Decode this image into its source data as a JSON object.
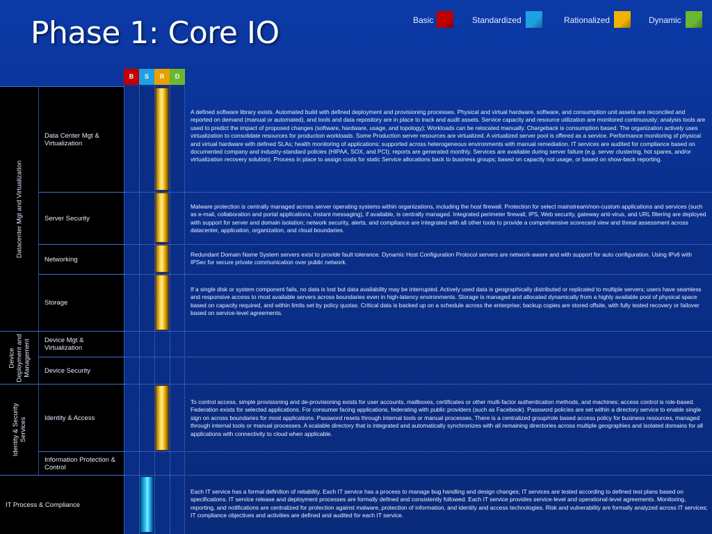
{
  "page": {
    "title": "Phase 1: Core IO"
  },
  "legend": [
    {
      "label": "Basic",
      "color": "#c00000"
    },
    {
      "label": "Standardized",
      "color": "#1fa0e0"
    },
    {
      "label": "Rationalized",
      "color": "#f0b400"
    },
    {
      "label": "Dynamic",
      "color": "#6ab830"
    }
  ],
  "column_headers": [
    {
      "label": "B",
      "color": "#c00000"
    },
    {
      "label": "S",
      "color": "#1fa0e0"
    },
    {
      "label": "R",
      "color": "#e8a000"
    },
    {
      "label": "D",
      "color": "#6ab830"
    }
  ],
  "categories": [
    {
      "label": "Datacenter Mgt and Virtualization"
    },
    {
      "label": "Device\nDeployment and\nManagement"
    },
    {
      "label": "Identity & Security\nServices"
    }
  ],
  "rows": [
    {
      "label": "Data Center Mgt &\nVirtualization",
      "level": "Rationalized",
      "description": "A defined software library exists. Automated build with defined deployment and provisioning processes.  Physical and virtual hardware, software, and consumption unit assets are reconciled and reported on demand (manual or automated), and tools and data repository are in place to track and audit assets. Service capacity and resource utilization are monitored continuously; analysis tools are used to predict the impact of proposed changes (software, hardware, usage, and topology); Workloads can be relocated manually. Chargeback is consumption based. The organization actively uses virtualization to consolidate resources for production workloads. Some Production server resources are virtualized. A virtualized server pool is offered as a service. Performance monitoring of physical and virtual hardware with defined SLAs; health monitoring of applications; supported across heterogeneous environments with manual remediation. IT services are audited for compliance based on documented company and industry-standard policies (HIPAA, SOX, and PCI); reports are generated monthly. Services are available during server failure (e.g. server clustering, hot spares, and/or virtualization recovery solution). Process in place to assign costs for static Service allocations back to business groups; based on capacity not usage, or based on show-back reporting."
    },
    {
      "label": "Server Security",
      "level": "Rationalized",
      "description": "Malware protection is centrally managed across server operating systems within organizations, including the host firewall. Protection for select mainstream/non-custom applications and services (such as e-mail, collaboration and portal applications, instant messaging), if available, is centrally managed. Integrated perimeter firewall, IPS, Web security, gateway anti-virus, and URL filtering are deployed with support for server and domain isolation; network security, alerts, and compliance are integrated with all other tools to provide a comprehensive scorecard view and threat assessment across datacenter, application, organization, and cloud boundaries."
    },
    {
      "label": "Networking",
      "level": "Rationalized",
      "description": "Redundant Domain Name System servers exist to provide fault tolerance. Dynamic Host Configuration Protocol servers are network-aware and with support for auto configuration.    Using IPv6 with IPSec for secure private communication over public network."
    },
    {
      "label": "Storage",
      "level": "Rationalized",
      "description": "If a single disk or system component fails, no data is lost but data availability may be interrupted. Actively used data is geographically distributed or replicated to multiple servers; users have seamless and responsive access to most available servers across boundaries even in high-latency environments.   Storage is managed and allocated dynamically from a highly available pool of physical space based on capacity required, and within limits set by policy quotas.  Critical data is backed up on a schedule across the enterprise; backup copies are stored offsite, with fully tested recovery or failover based on service-level agreements."
    },
    {
      "label": "Device Mgt &\nVirtualization",
      "level": "",
      "description": ""
    },
    {
      "label": "Device Security",
      "level": "",
      "description": ""
    },
    {
      "label": "Identity & Access",
      "level": "Rationalized",
      "description": "To control access, simple provisioning and de-provisioning exists for user accounts, mailboxes, certificates or other multi-factor authentication methods, and machines; access control is role-based. Federation exists for selected applications. For consumer facing applications, federating with public providers (such as Facebook). Password policies are set within a directory service to enable single sign on across boundaries for most applications. Password resets through internal tools or manual processes. There is a centralized group/role based access policy for business resources, managed through internal tools or manual processes. A scalable directory that is integrated and automatically synchronizes with all remaining directories across multiple geographies and isolated domains for all applications with connectivity to cloud when applicable."
    },
    {
      "label": "Information Protection &\nControl",
      "level": "",
      "description": ""
    },
    {
      "label": "IT Process & Compliance",
      "level": "Standardized",
      "description": "Each IT service has a formal definition of reliability.  Each IT service has a process to manage bug handling and design changes; IT services are tested according to defined test plans based on specifications. IT service release and deployment processes are formally defined and consistently followed. Each IT service provides service-level and operational-level agreements.  Monitoring, reporting, and notifications are centralized for protection against malware, protection of information, and identity and access technologies.    Risk and vulnerability are formally analyzed across IT services; IT compliance objectives and activities are defined and audited for each IT service."
    }
  ]
}
